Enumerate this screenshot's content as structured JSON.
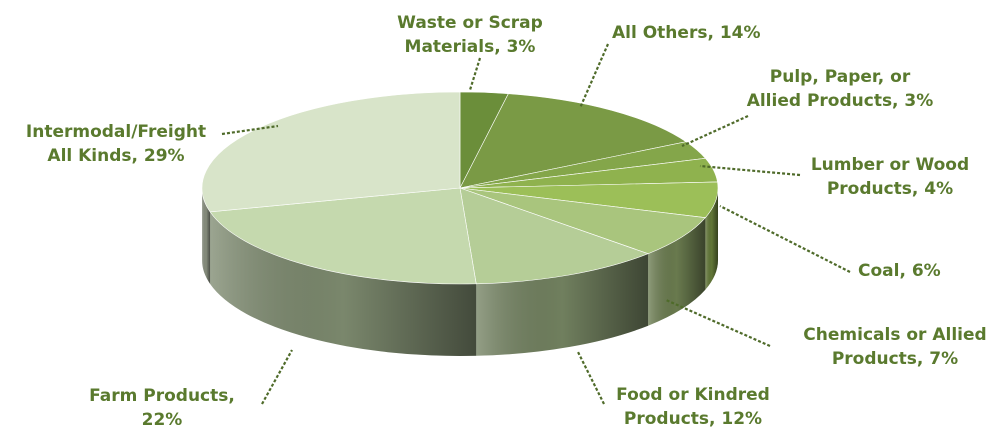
{
  "chart_data": {
    "type": "pie",
    "style": "3d",
    "title": "",
    "slices": [
      {
        "label_lines": [
          "Waste or Scrap",
          "Materials, 3%"
        ],
        "category": "Waste or Scrap Materials",
        "value": 3,
        "color": "#6b8e3a"
      },
      {
        "label_lines": [
          "All Others, 14%"
        ],
        "category": "All Others",
        "value": 14,
        "color": "#7a9a45"
      },
      {
        "label_lines": [
          "Pulp, Paper, or",
          "Allied Products, 3%"
        ],
        "category": "Pulp, Paper, or Allied Products",
        "value": 3,
        "color": "#84a64a"
      },
      {
        "label_lines": [
          "Lumber or Wood",
          "Products, 4%"
        ],
        "category": "Lumber or Wood Products",
        "value": 4,
        "color": "#8fb24e"
      },
      {
        "label_lines": [
          "Coal, 6%"
        ],
        "category": "Coal",
        "value": 6,
        "color": "#9cbf58"
      },
      {
        "label_lines": [
          "Chemicals or Allied",
          "Products, 7%"
        ],
        "category": "Chemicals or Allied Products",
        "value": 7,
        "color": "#a9c57d"
      },
      {
        "label_lines": [
          "Food or Kindred",
          "Products, 12%"
        ],
        "category": "Food or Kindred Products",
        "value": 12,
        "color": "#b5cd97"
      },
      {
        "label_lines": [
          "Farm Products,",
          "22%"
        ],
        "category": "Farm Products",
        "value": 22,
        "color": "#c5d9ae"
      },
      {
        "label_lines": [
          "Intermodal/Freight",
          "All Kinds, 29%"
        ],
        "category": "Intermodal/Freight All Kinds",
        "value": 29,
        "color": "#d8e4c9"
      }
    ],
    "label_color": "#5a7a2e",
    "leader_color": "#4f6b2a",
    "legend": "none"
  }
}
